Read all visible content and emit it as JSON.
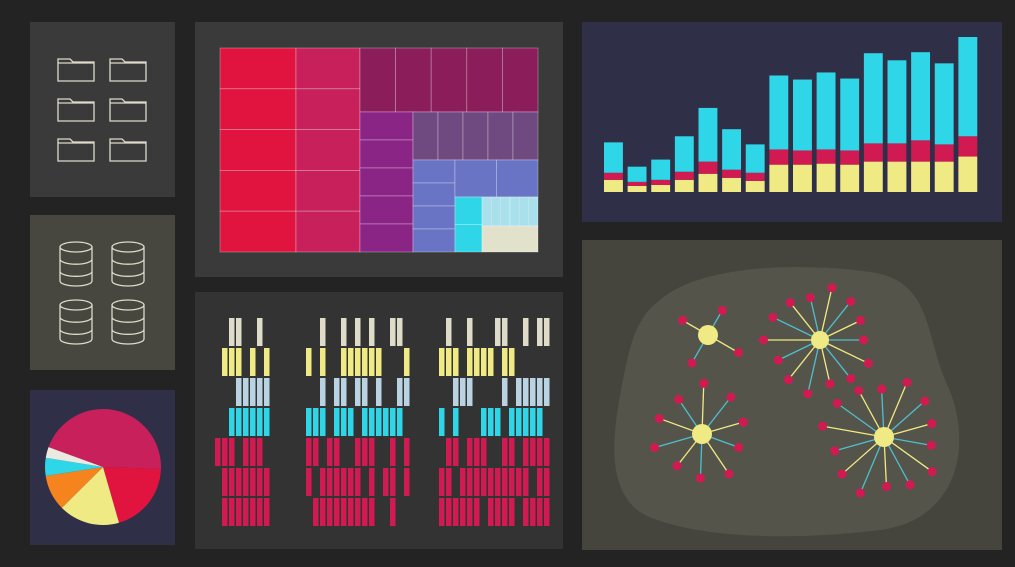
{
  "chart_data": [
    {
      "type": "bar",
      "stacked": true,
      "series": [
        {
          "color": "#f0ea84",
          "values": [
            12,
            6,
            7,
            12,
            18,
            14,
            11,
            27,
            27,
            28,
            27,
            30,
            30,
            30,
            30,
            35
          ]
        },
        {
          "color": "#d21a52",
          "values": [
            7,
            4,
            5,
            8,
            12,
            8,
            8,
            15,
            14,
            14,
            14,
            18,
            18,
            21,
            17,
            20
          ]
        },
        {
          "color": "#2ed6e8",
          "values": [
            30,
            15,
            20,
            35,
            53,
            40,
            28,
            73,
            70,
            76,
            71,
            89,
            82,
            87,
            80,
            98
          ]
        }
      ]
    },
    {
      "type": "pie",
      "values": [
        45,
        20,
        17,
        10,
        5,
        3
      ],
      "colors": [
        "#c8205a",
        "#e0143e",
        "#f0ea84",
        "#f5841f",
        "#2ed6e8",
        "#ece9e0"
      ]
    }
  ]
}
